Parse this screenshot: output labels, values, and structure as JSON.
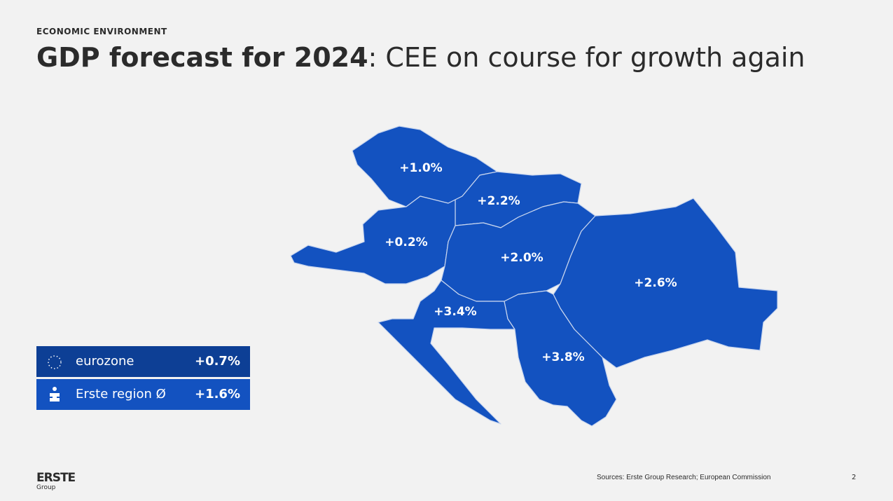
{
  "header": {
    "kicker": "ECONOMIC ENVIRONMENT",
    "title_bold": "GDP forecast for 2024",
    "title_rest": ": CEE on course for growth again"
  },
  "map": {
    "regions": [
      {
        "label": "+1.0%"
      },
      {
        "label": "+2.2%"
      },
      {
        "label": "+0.2%"
      },
      {
        "label": "+2.0%"
      },
      {
        "label": "+2.6%"
      },
      {
        "label": "+3.4%"
      },
      {
        "label": "+3.8%"
      }
    ]
  },
  "legend": [
    {
      "name": "eurozone",
      "value": "+0.7%"
    },
    {
      "name": "Erste region Ø",
      "value": "+1.6%"
    }
  ],
  "footer": {
    "logo": "ERSTE",
    "logo_sub": "Group",
    "source": "Sources: Erste Group Research; European Commission",
    "page": "2"
  }
}
